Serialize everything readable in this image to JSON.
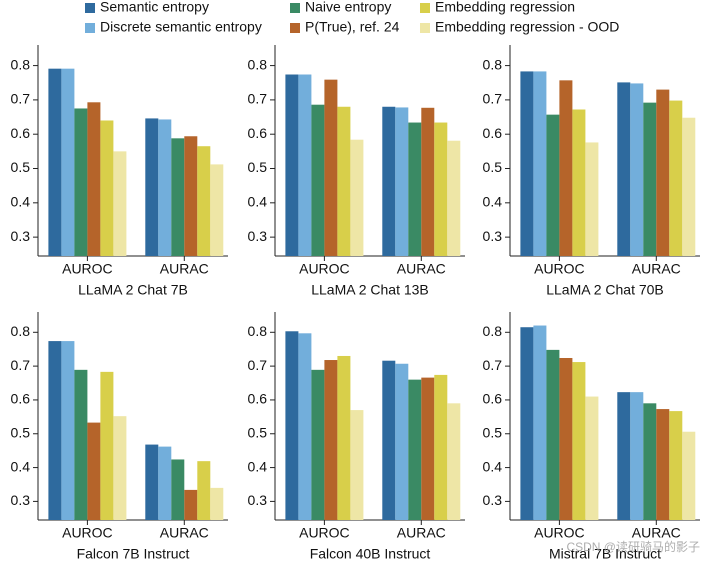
{
  "legend": [
    {
      "name": "Semantic entropy",
      "color": "#2e6a9e"
    },
    {
      "name": "Discrete semantic entropy",
      "color": "#72aedb"
    },
    {
      "name": "Naive entropy",
      "color": "#3a8a64"
    },
    {
      "name": "P(True), ref. 24",
      "color": "#b5642a"
    },
    {
      "name": "Embedding regression",
      "color": "#d8cf4a"
    },
    {
      "name": "Embedding regression - OOD",
      "color": "#eee6a6"
    }
  ],
  "watermark": "CSDN @读研骑马的影子",
  "chart_data": [
    {
      "type": "bar",
      "title": "LLaMA 2 Chat 7B",
      "categories": [
        "AUROC",
        "AURAC"
      ],
      "ylim": [
        0.245,
        0.86
      ],
      "yticks": [
        0.3,
        0.4,
        0.5,
        0.6,
        0.7,
        0.8
      ],
      "series": [
        {
          "values": [
            0.791,
            0.646
          ]
        },
        {
          "values": [
            0.791,
            0.643
          ]
        },
        {
          "values": [
            0.675,
            0.588
          ]
        },
        {
          "values": [
            0.693,
            0.594
          ]
        },
        {
          "values": [
            0.64,
            0.565
          ]
        },
        {
          "values": [
            0.55,
            0.512
          ]
        }
      ]
    },
    {
      "type": "bar",
      "title": "LLaMA 2 Chat 13B",
      "categories": [
        "AUROC",
        "AURAC"
      ],
      "ylim": [
        0.245,
        0.86
      ],
      "yticks": [
        0.3,
        0.4,
        0.5,
        0.6,
        0.7,
        0.8
      ],
      "series": [
        {
          "values": [
            0.774,
            0.68
          ]
        },
        {
          "values": [
            0.774,
            0.678
          ]
        },
        {
          "values": [
            0.686,
            0.634
          ]
        },
        {
          "values": [
            0.759,
            0.677
          ]
        },
        {
          "values": [
            0.68,
            0.634
          ]
        },
        {
          "values": [
            0.584,
            0.581
          ]
        }
      ]
    },
    {
      "type": "bar",
      "title": "LLaMA 2 Chat 70B",
      "categories": [
        "AUROC",
        "AURAC"
      ],
      "ylim": [
        0.245,
        0.86
      ],
      "yticks": [
        0.3,
        0.4,
        0.5,
        0.6,
        0.7,
        0.8
      ],
      "series": [
        {
          "values": [
            0.783,
            0.751
          ]
        },
        {
          "values": [
            0.783,
            0.748
          ]
        },
        {
          "values": [
            0.657,
            0.692
          ]
        },
        {
          "values": [
            0.757,
            0.73
          ]
        },
        {
          "values": [
            0.672,
            0.698
          ]
        },
        {
          "values": [
            0.576,
            0.648
          ]
        }
      ]
    },
    {
      "type": "bar",
      "title": "Falcon 7B Instruct",
      "categories": [
        "AUROC",
        "AURAC"
      ],
      "ylim": [
        0.245,
        0.86
      ],
      "yticks": [
        0.3,
        0.4,
        0.5,
        0.6,
        0.7,
        0.8
      ],
      "series": [
        {
          "values": [
            0.774,
            0.468
          ]
        },
        {
          "values": [
            0.774,
            0.462
          ]
        },
        {
          "values": [
            0.689,
            0.424
          ]
        },
        {
          "values": [
            0.533,
            0.334
          ]
        },
        {
          "values": [
            0.683,
            0.419
          ]
        },
        {
          "values": [
            0.552,
            0.34
          ]
        }
      ]
    },
    {
      "type": "bar",
      "title": "Falcon 40B Instruct",
      "categories": [
        "AUROC",
        "AURAC"
      ],
      "ylim": [
        0.245,
        0.86
      ],
      "yticks": [
        0.3,
        0.4,
        0.5,
        0.6,
        0.7,
        0.8
      ],
      "series": [
        {
          "values": [
            0.803,
            0.716
          ]
        },
        {
          "values": [
            0.797,
            0.707
          ]
        },
        {
          "values": [
            0.689,
            0.66
          ]
        },
        {
          "values": [
            0.718,
            0.666
          ]
        },
        {
          "values": [
            0.73,
            0.674
          ]
        },
        {
          "values": [
            0.57,
            0.59
          ]
        }
      ]
    },
    {
      "type": "bar",
      "title": "Mistral 7B Instruct",
      "categories": [
        "AUROC",
        "AURAC"
      ],
      "ylim": [
        0.245,
        0.86
      ],
      "yticks": [
        0.3,
        0.4,
        0.5,
        0.6,
        0.7,
        0.8
      ],
      "series": [
        {
          "values": [
            0.815,
            0.623
          ]
        },
        {
          "values": [
            0.82,
            0.623
          ]
        },
        {
          "values": [
            0.748,
            0.59
          ]
        },
        {
          "values": [
            0.724,
            0.573
          ]
        },
        {
          "values": [
            0.712,
            0.567
          ]
        },
        {
          "values": [
            0.61,
            0.506
          ]
        }
      ]
    }
  ]
}
